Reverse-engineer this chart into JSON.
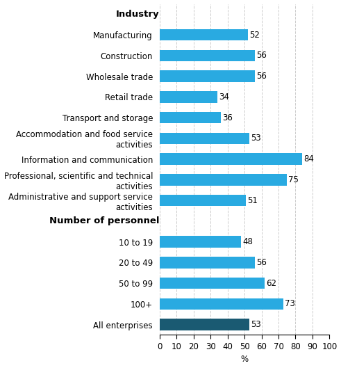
{
  "categories": [
    "All enterprises",
    "100+",
    "50 to 99",
    "20 to 49",
    "10 to 19",
    "__Number of personnel__",
    "Administrative and support service\nactivities",
    "Professional, scientific and technical\nactivities",
    "Information and communication",
    "Accommodation and food service\nactivities",
    "Transport and storage",
    "Retail trade",
    "Wholesale trade",
    "Construction",
    "Manufacturing",
    "__Industry__"
  ],
  "values": [
    53,
    73,
    62,
    56,
    48,
    null,
    51,
    75,
    84,
    53,
    36,
    34,
    56,
    56,
    52,
    null
  ],
  "bar_colors": [
    "#1a5a72",
    "#29aae1",
    "#29aae1",
    "#29aae1",
    "#29aae1",
    null,
    "#29aae1",
    "#29aae1",
    "#29aae1",
    "#29aae1",
    "#29aae1",
    "#29aae1",
    "#29aae1",
    "#29aae1",
    "#29aae1",
    null
  ],
  "section_indices": [
    5,
    15
  ],
  "section_labels": [
    "Number of personnel",
    "Industry"
  ],
  "xlim": [
    0,
    100
  ],
  "xticks": [
    0,
    10,
    20,
    30,
    40,
    50,
    60,
    70,
    80,
    90,
    100
  ],
  "xlabel": "%",
  "grid_color": "#cccccc",
  "value_label_fontsize": 8.5,
  "tick_fontsize": 8.5,
  "section_fontsize": 9.5,
  "bar_height": 0.55
}
